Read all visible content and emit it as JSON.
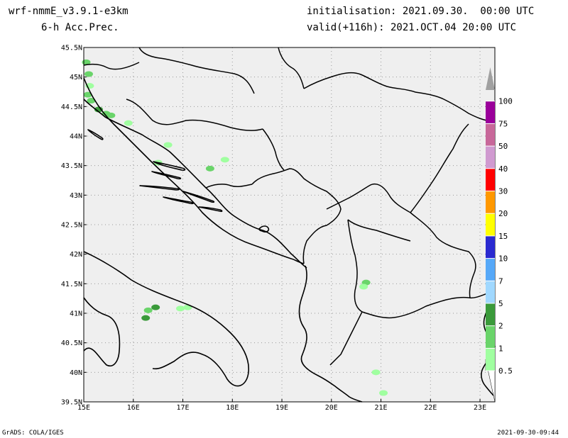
{
  "header": {
    "model": "wrf-nmmE_v3.9.1-e3km",
    "field": "6-h Acc.Prec.",
    "initialisation": "initialisation: 2021.09.30.  00:00 UTC",
    "valid": "valid(+116h): 2021.OCT.04 20:00 UTC"
  },
  "footer": {
    "left": "GrADS: COLA/IGES",
    "right": "2021-09-30-09:44"
  },
  "map": {
    "lon_range": [
      15,
      23.3
    ],
    "lat_range": [
      39.5,
      45.5
    ],
    "lon_ticks": [
      15,
      16,
      17,
      18,
      19,
      20,
      21,
      22,
      23
    ],
    "lon_labels": [
      "15E",
      "16E",
      "17E",
      "18E",
      "19E",
      "20E",
      "21E",
      "22E",
      "23E"
    ],
    "lat_ticks": [
      45.5,
      45,
      44.5,
      44,
      43.5,
      43,
      42.5,
      42,
      41.5,
      41,
      40.5,
      40,
      39.5
    ],
    "lat_labels": [
      "45.5N",
      "45N",
      "44.5N",
      "44N",
      "43.5N",
      "43N",
      "42.5N",
      "42N",
      "41.5N",
      "41N",
      "40.5N",
      "40N",
      "39.5N"
    ],
    "background_color": "#efefef",
    "grid": "dotted"
  },
  "colorbar": {
    "levels": [
      "0.5",
      "1",
      "2",
      "5",
      "7",
      "10",
      "15",
      "20",
      "30",
      "40",
      "50",
      "75",
      "100"
    ],
    "colors": [
      "#ffffff",
      "#a0ffa0",
      "#6ad46a",
      "#3a9a3a",
      "#a0d8ff",
      "#56a8f8",
      "#2a2ad0",
      "#ffff00",
      "#ff9800",
      "#ff0000",
      "#d09ad0",
      "#c8689a",
      "#9a009a",
      "#a0a0a0"
    ]
  },
  "precip_cells": [
    {
      "lon": 15.05,
      "lat": 45.25,
      "level": 2
    },
    {
      "lon": 15.1,
      "lat": 45.05,
      "level": 2
    },
    {
      "lon": 15.12,
      "lat": 44.85,
      "level": 1
    },
    {
      "lon": 15.08,
      "lat": 44.7,
      "level": 2
    },
    {
      "lon": 15.15,
      "lat": 44.6,
      "level": 2
    },
    {
      "lon": 15.3,
      "lat": 44.45,
      "level": 3
    },
    {
      "lon": 15.45,
      "lat": 44.38,
      "level": 2
    },
    {
      "lon": 15.55,
      "lat": 44.35,
      "level": 2
    },
    {
      "lon": 15.9,
      "lat": 44.22,
      "level": 1
    },
    {
      "lon": 16.7,
      "lat": 43.85,
      "level": 1
    },
    {
      "lon": 16.5,
      "lat": 43.55,
      "level": 1
    },
    {
      "lon": 17.55,
      "lat": 43.45,
      "level": 2
    },
    {
      "lon": 17.85,
      "lat": 43.6,
      "level": 1
    },
    {
      "lon": 16.3,
      "lat": 41.05,
      "level": 2
    },
    {
      "lon": 16.45,
      "lat": 41.1,
      "level": 3
    },
    {
      "lon": 16.25,
      "lat": 40.92,
      "level": 3
    },
    {
      "lon": 16.95,
      "lat": 41.08,
      "level": 1
    },
    {
      "lon": 17.1,
      "lat": 41.1,
      "level": 1
    },
    {
      "lon": 20.7,
      "lat": 41.52,
      "level": 2
    },
    {
      "lon": 20.65,
      "lat": 41.45,
      "level": 1
    },
    {
      "lon": 20.9,
      "lat": 40.0,
      "level": 1
    },
    {
      "lon": 21.05,
      "lat": 39.65,
      "level": 1
    }
  ]
}
